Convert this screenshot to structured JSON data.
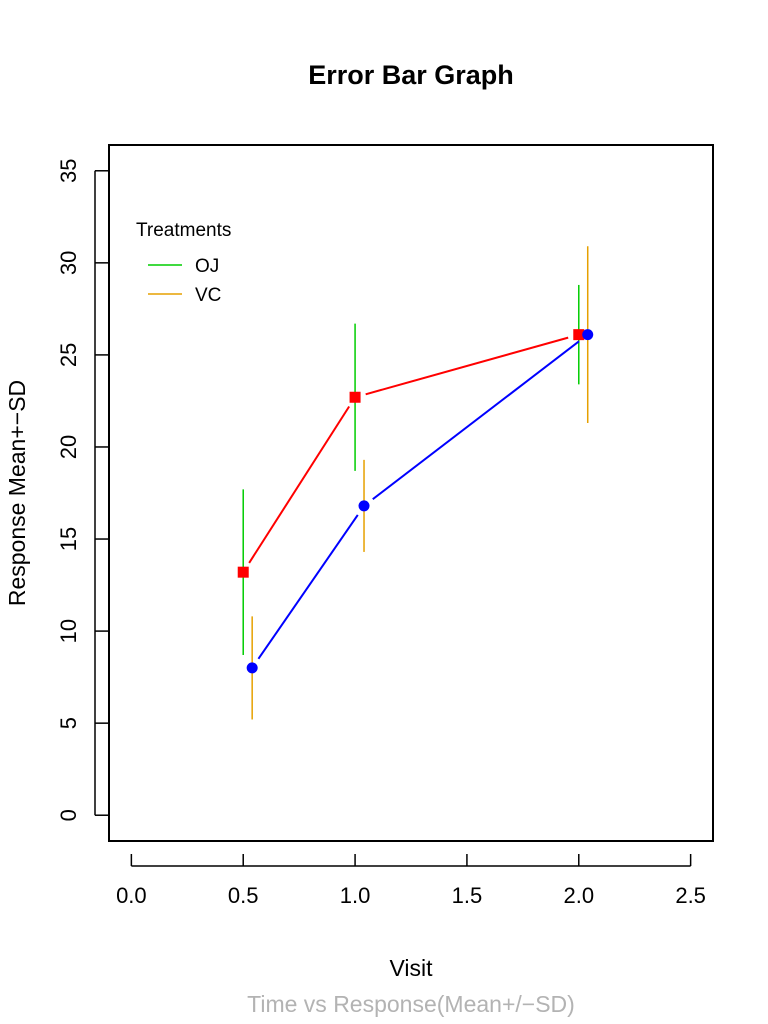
{
  "chart_data": {
    "type": "line",
    "title": "Error Bar Graph",
    "xlabel": "Visit",
    "ylabel": "Response Mean+−SD",
    "caption": "Time vs Response(Mean+/−SD)",
    "xlim": [
      -0.1,
      2.6
    ],
    "ylim": [
      -1.4,
      36.4
    ],
    "xticks": [
      "0.0",
      "0.5",
      "1.0",
      "1.5",
      "2.0",
      "2.5"
    ],
    "yticks": [
      "0",
      "5",
      "10",
      "15",
      "20",
      "25",
      "30",
      "35"
    ],
    "legend": {
      "title": "Treatments",
      "placement": "top-left",
      "entries": [
        {
          "label": "OJ",
          "color": "#00cd00"
        },
        {
          "label": "VC",
          "color": "#e6a000"
        }
      ]
    },
    "series": [
      {
        "name": "OJ",
        "line_color": "#ff0000",
        "marker": "square",
        "marker_color": "#ff0000",
        "errorbar_color": "#00cd00",
        "x": [
          0.5,
          1.0,
          2.0
        ],
        "y": [
          13.2,
          22.7,
          26.1
        ],
        "sd": [
          4.5,
          4.0,
          2.7
        ]
      },
      {
        "name": "VC",
        "line_color": "#0000ff",
        "marker": "circle",
        "marker_color": "#0000ff",
        "errorbar_color": "#e6a000",
        "x": [
          0.54,
          1.04,
          2.04
        ],
        "y": [
          8.0,
          16.8,
          26.1
        ],
        "sd": [
          2.8,
          2.5,
          4.8
        ]
      }
    ],
    "grid": false
  }
}
